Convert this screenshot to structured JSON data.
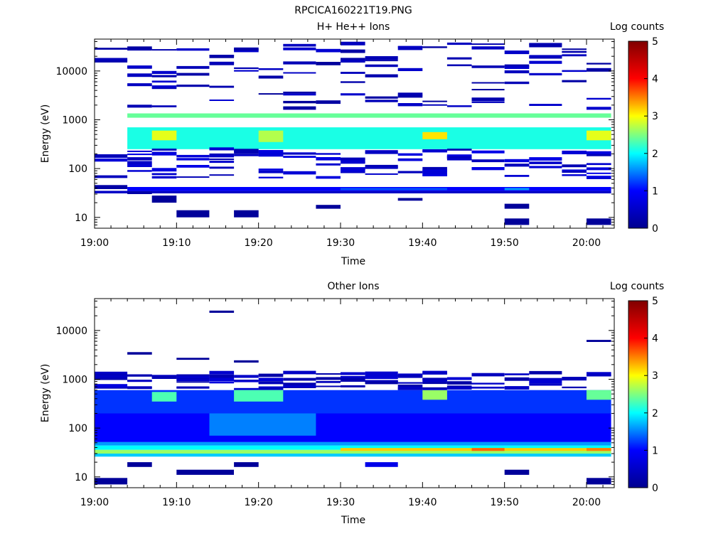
{
  "figure_title": "RPCICA160221T19.PNG",
  "colorscale": {
    "stops": [
      "#00008f",
      "#0000ff",
      "#00ffff",
      "#ffff00",
      "#ff0000",
      "#800000"
    ],
    "range": [
      0,
      5
    ]
  },
  "chart_data": [
    {
      "type": "heatmap",
      "title": "H+ He++ Ions",
      "xlabel": "Time",
      "ylabel": "Energy (eV)",
      "x_ticks": [
        "19:00",
        "19:10",
        "19:20",
        "19:30",
        "19:40",
        "19:50",
        "20:00"
      ],
      "x_range_minutes": [
        0,
        63
      ],
      "y_scale": "log",
      "y_ticks": [
        "10",
        "100",
        "1000",
        "10000"
      ],
      "y_range": [
        6,
        45000
      ],
      "colorbar_label": "Log counts",
      "colorbar_ticks": [
        "0",
        "1",
        "2",
        "3",
        "4",
        "5"
      ],
      "time_columns_minutes": [
        0,
        4,
        7,
        10,
        14,
        17,
        20,
        23,
        27,
        30,
        33,
        37,
        40,
        43,
        46,
        50,
        53,
        57,
        60
      ],
      "cells": [
        {
          "t0": 4,
          "t1": 63,
          "e0": 1100,
          "e1": 1350,
          "v": 2.4
        },
        {
          "t0": 4,
          "t1": 63,
          "e0": 250,
          "e1": 700,
          "v": 2.1
        },
        {
          "t0": 7,
          "t1": 10,
          "e0": 380,
          "e1": 600,
          "v": 2.9
        },
        {
          "t0": 20,
          "t1": 23,
          "e0": 350,
          "e1": 600,
          "v": 2.7
        },
        {
          "t0": 40,
          "t1": 43,
          "e0": 400,
          "e1": 560,
          "v": 3.1
        },
        {
          "t0": 60,
          "t1": 63,
          "e0": 380,
          "e1": 600,
          "v": 2.9
        },
        {
          "t0": 4,
          "t1": 63,
          "e0": 35,
          "e1": 42,
          "v": 1.0
        },
        {
          "t0": 0,
          "t1": 63,
          "e0": 31,
          "e1": 35,
          "v": 0.5
        },
        {
          "t0": 30,
          "t1": 43,
          "e0": 36,
          "e1": 40,
          "v": 1.3
        },
        {
          "t0": 50,
          "t1": 53,
          "e0": 36,
          "e1": 40,
          "v": 1.6
        },
        {
          "t0": 0,
          "t1": 4,
          "e0": 38,
          "e1": 46,
          "v": 0.2
        },
        {
          "t0": 4,
          "t1": 7,
          "e0": 30,
          "e1": 34,
          "v": 0.2
        },
        {
          "t0": 7,
          "t1": 10,
          "e0": 20,
          "e1": 28,
          "v": 0.1
        },
        {
          "t0": 10,
          "t1": 14,
          "e0": 10,
          "e1": 14,
          "v": 0.1
        },
        {
          "t0": 17,
          "t1": 20,
          "e0": 10,
          "e1": 14,
          "v": 0.1
        },
        {
          "t0": 27,
          "t1": 30,
          "e0": 15,
          "e1": 18,
          "v": 0.1
        },
        {
          "t0": 37,
          "t1": 40,
          "e0": 22,
          "e1": 25,
          "v": 0.1
        },
        {
          "t0": 50,
          "t1": 53,
          "e0": 15,
          "e1": 19,
          "v": 0.1
        },
        {
          "t0": 50,
          "t1": 53,
          "e0": 7,
          "e1": 9.5,
          "v": 0.1
        },
        {
          "t0": 60,
          "t1": 63,
          "e0": 7,
          "e1": 9.5,
          "v": 0.1
        },
        {
          "t0": 0,
          "t1": 63,
          "e0": 1500,
          "e1": 35000,
          "v": 0.1,
          "pattern": "sparse"
        },
        {
          "t0": 0,
          "t1": 63,
          "e0": 60,
          "e1": 250,
          "v": 0.3,
          "pattern": "sparse"
        }
      ]
    },
    {
      "type": "heatmap",
      "title": "Other Ions",
      "xlabel": "Time",
      "ylabel": "Energy (eV)",
      "x_ticks": [
        "19:00",
        "19:10",
        "19:20",
        "19:30",
        "19:40",
        "19:50",
        "20:00"
      ],
      "x_range_minutes": [
        0,
        63
      ],
      "y_scale": "log",
      "y_ticks": [
        "10",
        "100",
        "1000",
        "10000"
      ],
      "y_range": [
        6,
        45000
      ],
      "colorbar_label": "Log counts",
      "colorbar_ticks": [
        "0",
        "1",
        "2",
        "3",
        "4",
        "5"
      ],
      "time_columns_minutes": [
        0,
        4,
        7,
        10,
        14,
        17,
        20,
        23,
        27,
        30,
        33,
        37,
        40,
        43,
        46,
        50,
        53,
        57,
        60
      ],
      "cells": [
        {
          "t0": 0,
          "t1": 63,
          "e0": 26,
          "e1": 30,
          "v": 1.8
        },
        {
          "t0": 0,
          "t1": 63,
          "e0": 30,
          "e1": 36,
          "v": 2.6
        },
        {
          "t0": 0,
          "t1": 63,
          "e0": 36,
          "e1": 44,
          "v": 2.0
        },
        {
          "t0": 0,
          "t1": 63,
          "e0": 44,
          "e1": 52,
          "v": 1.6
        },
        {
          "t0": 30,
          "t1": 63,
          "e0": 34,
          "e1": 39,
          "v": 3.2
        },
        {
          "t0": 46,
          "t1": 50,
          "e0": 34,
          "e1": 39,
          "v": 3.6
        },
        {
          "t0": 60,
          "t1": 63,
          "e0": 34,
          "e1": 39,
          "v": 3.5
        },
        {
          "t0": 0,
          "t1": 63,
          "e0": 52,
          "e1": 200,
          "v": 1.0
        },
        {
          "t0": 14,
          "t1": 27,
          "e0": 70,
          "e1": 200,
          "v": 1.5
        },
        {
          "t0": 0,
          "t1": 63,
          "e0": 200,
          "e1": 600,
          "v": 1.2
        },
        {
          "t0": 7,
          "t1": 10,
          "e0": 350,
          "e1": 550,
          "v": 2.3
        },
        {
          "t0": 17,
          "t1": 23,
          "e0": 350,
          "e1": 600,
          "v": 2.3
        },
        {
          "t0": 40,
          "t1": 43,
          "e0": 380,
          "e1": 600,
          "v": 2.6
        },
        {
          "t0": 60,
          "t1": 63,
          "e0": 380,
          "e1": 600,
          "v": 2.4
        },
        {
          "t0": 0,
          "t1": 63,
          "e0": 600,
          "e1": 1300,
          "v": 0.2,
          "pattern": "sparse"
        },
        {
          "t0": 4,
          "t1": 7,
          "e0": 3200,
          "e1": 3600,
          "v": 0.1
        },
        {
          "t0": 10,
          "t1": 14,
          "e0": 2500,
          "e1": 2750,
          "v": 0.1
        },
        {
          "t0": 14,
          "t1": 17,
          "e0": 23000,
          "e1": 25500,
          "v": 0.1
        },
        {
          "t0": 17,
          "t1": 20,
          "e0": 2200,
          "e1": 2450,
          "v": 0.1
        },
        {
          "t0": 60,
          "t1": 63,
          "e0": 5800,
          "e1": 6400,
          "v": 0.1
        },
        {
          "t0": 0,
          "t1": 4,
          "e0": 7,
          "e1": 9.5,
          "v": 0.1
        },
        {
          "t0": 4,
          "t1": 7,
          "e0": 16,
          "e1": 20,
          "v": 0.1
        },
        {
          "t0": 10,
          "t1": 17,
          "e0": 11,
          "e1": 14,
          "v": 0.1
        },
        {
          "t0": 17,
          "t1": 20,
          "e0": 16,
          "e1": 20,
          "v": 0.1
        },
        {
          "t0": 33,
          "t1": 37,
          "e0": 16,
          "e1": 20,
          "v": 0.8
        },
        {
          "t0": 50,
          "t1": 53,
          "e0": 11,
          "e1": 14,
          "v": 0.1
        },
        {
          "t0": 60,
          "t1": 63,
          "e0": 7,
          "e1": 9.5,
          "v": 0.1
        }
      ]
    }
  ]
}
